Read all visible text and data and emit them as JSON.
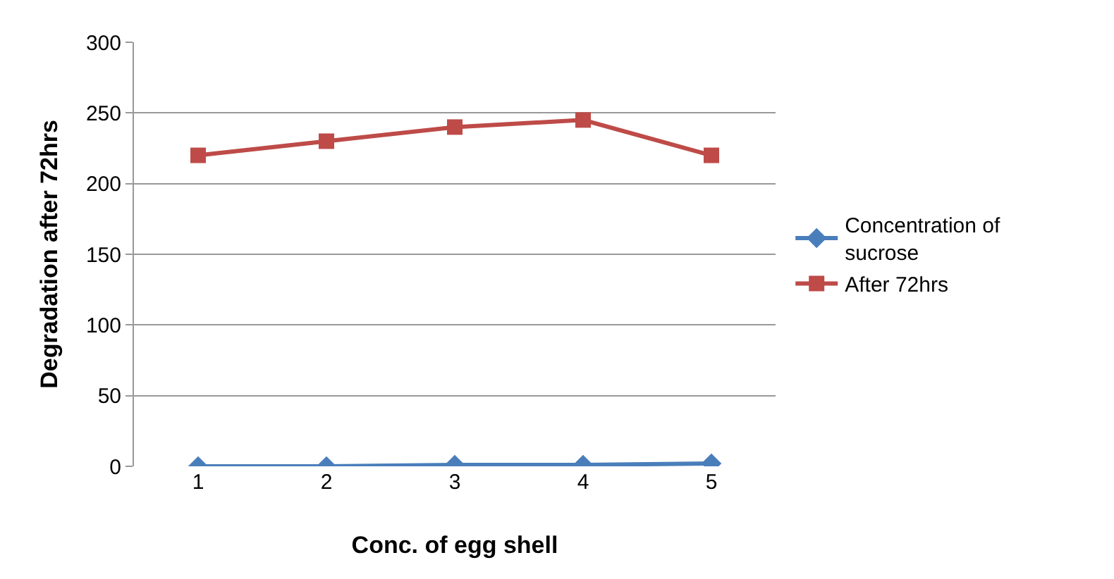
{
  "chart_data": {
    "type": "line",
    "xlabel": "Conc. of egg shell",
    "ylabel": "Degradation after 72hrs",
    "categories": [
      "1",
      "2",
      "3",
      "4",
      "5"
    ],
    "series": [
      {
        "name": "Concentration of sucrose",
        "color": "#4a7ebb",
        "marker": "diamond",
        "values": [
          0,
          0,
          1,
          1,
          2
        ]
      },
      {
        "name": "After 72hrs",
        "color": "#be4b48",
        "marker": "square",
        "values": [
          220,
          230,
          240,
          245,
          220
        ]
      }
    ],
    "ylim": [
      0,
      300
    ],
    "yticks": [
      0,
      50,
      100,
      150,
      200,
      250,
      300
    ],
    "grid": "y",
    "legend": "right"
  }
}
